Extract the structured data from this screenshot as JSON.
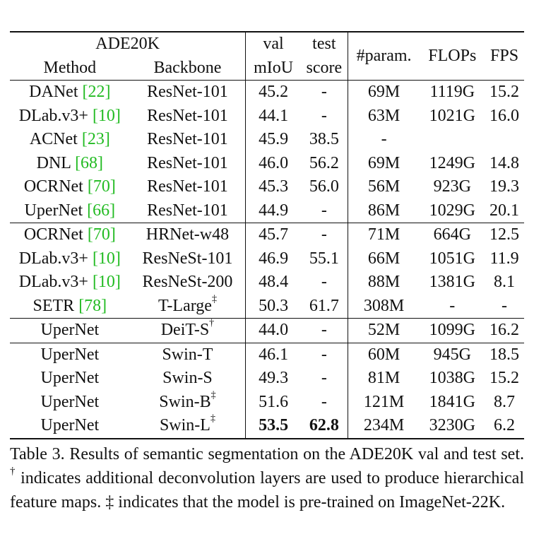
{
  "table": {
    "header": {
      "dataset": "ADE20K",
      "method": "Method",
      "backbone": "Backbone",
      "val_top": "val",
      "val_bottom": "mIoU",
      "test_top": "test",
      "test_bottom": "score",
      "params": "#param.",
      "flops": "FLOPs",
      "fps": "FPS"
    },
    "rows": [
      {
        "method": "DANet ",
        "cite": "[22]",
        "backbone": "ResNet-101",
        "mark": "",
        "val": "45.2",
        "test": "-",
        "params": "69M",
        "flops": "1119G",
        "fps": "15.2"
      },
      {
        "method": "DLab.v3+ ",
        "cite": "[10]",
        "backbone": "ResNet-101",
        "mark": "",
        "val": "44.1",
        "test": "-",
        "params": "63M",
        "flops": "1021G",
        "fps": "16.0"
      },
      {
        "method": "ACNet ",
        "cite": "[23]",
        "backbone": "ResNet-101",
        "mark": "",
        "val": "45.9",
        "test": "38.5",
        "params": "-",
        "flops": "",
        "fps": ""
      },
      {
        "method": "DNL ",
        "cite": "[68]",
        "backbone": "ResNet-101",
        "mark": "",
        "val": "46.0",
        "test": "56.2",
        "params": "69M",
        "flops": "1249G",
        "fps": "14.8"
      },
      {
        "method": "OCRNet ",
        "cite": "[70]",
        "backbone": "ResNet-101",
        "mark": "",
        "val": "45.3",
        "test": "56.0",
        "params": "56M",
        "flops": "923G",
        "fps": "19.3"
      },
      {
        "method": "UperNet ",
        "cite": "[66]",
        "backbone": "ResNet-101",
        "mark": "",
        "val": "44.9",
        "test": "-",
        "params": "86M",
        "flops": "1029G",
        "fps": "20.1"
      },
      {
        "method": "OCRNet ",
        "cite": "[70]",
        "backbone": "HRNet-w48",
        "mark": "",
        "val": "45.7",
        "test": "-",
        "params": "71M",
        "flops": "664G",
        "fps": "12.5"
      },
      {
        "method": "DLab.v3+ ",
        "cite": "[10]",
        "backbone": "ResNeSt-101",
        "mark": "",
        "val": "46.9",
        "test": "55.1",
        "params": "66M",
        "flops": "1051G",
        "fps": "11.9"
      },
      {
        "method": "DLab.v3+ ",
        "cite": "[10]",
        "backbone": "ResNeSt-200",
        "mark": "",
        "val": "48.4",
        "test": "-",
        "params": "88M",
        "flops": "1381G",
        "fps": "8.1"
      },
      {
        "method": "SETR ",
        "cite": "[78]",
        "backbone": "T-Large",
        "mark": "‡",
        "val": "50.3",
        "test": "61.7",
        "params": "308M",
        "flops": "-",
        "fps": "-"
      },
      {
        "method": "UperNet",
        "cite": "",
        "backbone": "DeiT-S",
        "mark": "†",
        "val": "44.0",
        "test": "-",
        "params": "52M",
        "flops": "1099G",
        "fps": "16.2"
      },
      {
        "method": "UperNet",
        "cite": "",
        "backbone": "Swin-T",
        "mark": "",
        "val": "46.1",
        "test": "-",
        "params": "60M",
        "flops": "945G",
        "fps": "18.5"
      },
      {
        "method": "UperNet",
        "cite": "",
        "backbone": "Swin-S",
        "mark": "",
        "val": "49.3",
        "test": "-",
        "params": "81M",
        "flops": "1038G",
        "fps": "15.2"
      },
      {
        "method": "UperNet",
        "cite": "",
        "backbone": "Swin-B",
        "mark": "‡",
        "val": "51.6",
        "test": "-",
        "params": "121M",
        "flops": "1841G",
        "fps": "8.7"
      },
      {
        "method": "UperNet",
        "cite": "",
        "backbone": "Swin-L",
        "mark": "‡",
        "val": "53.5",
        "test": "62.8",
        "params": "234M",
        "flops": "3230G",
        "fps": "6.2"
      }
    ]
  },
  "caption": {
    "part1": "Table 3. Results of semantic segmentation on the ADE20K val and test set. ",
    "dagger": "†",
    "part2": " indicates additional deconvolution layers are used to produce hierarchical feature maps. ‡ indicates that the model is pre-trained on ImageNet-22K."
  }
}
